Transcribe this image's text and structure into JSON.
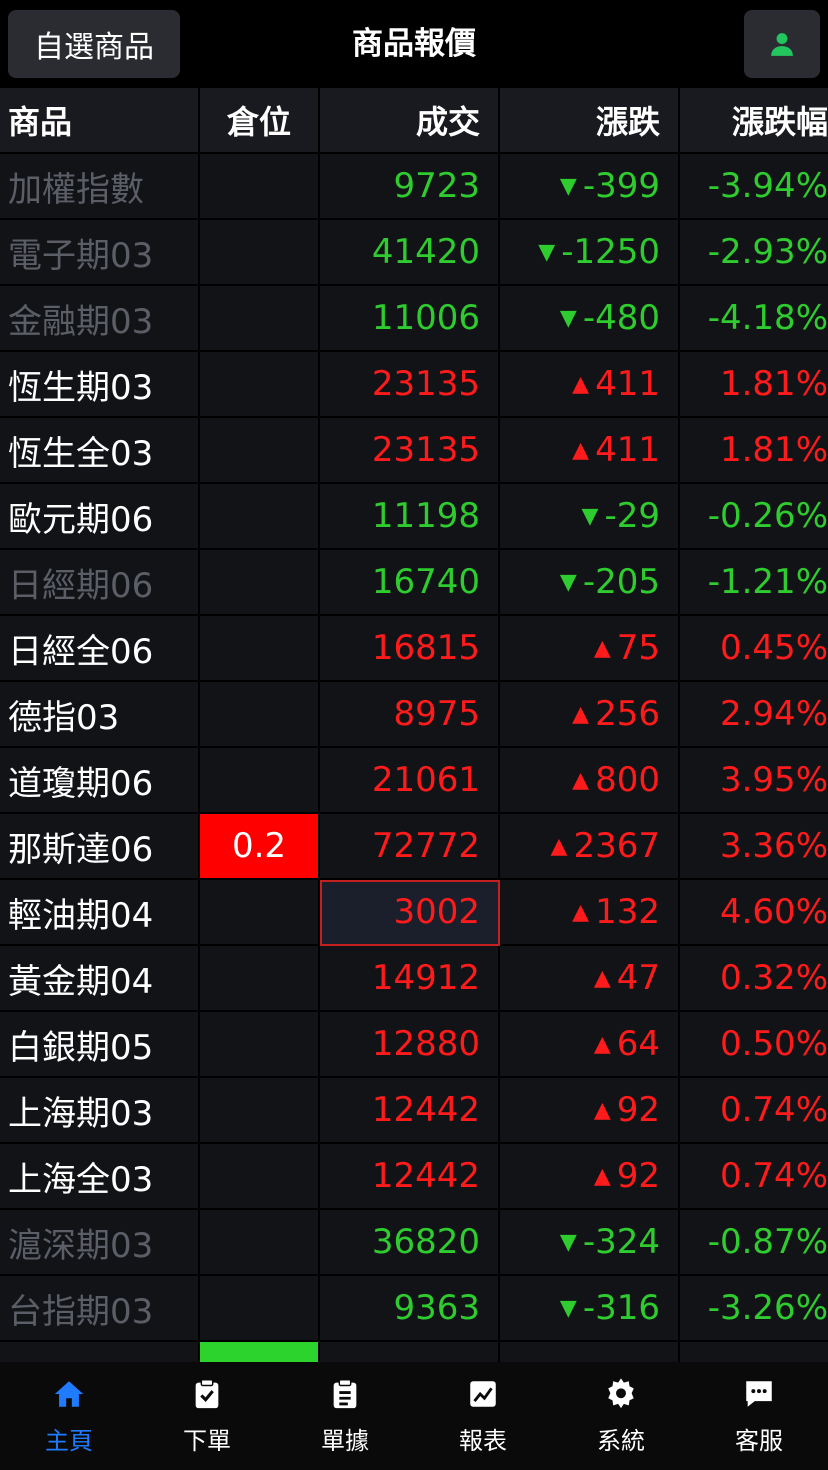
{
  "header": {
    "favorites_label": "自選商品",
    "title": "商品報價",
    "user_icon": "user-icon",
    "accent": "#22c55e"
  },
  "table": {
    "columns": [
      "商品",
      "倉位",
      "成交",
      "漲跌",
      "漲跌幅"
    ],
    "rows": [
      {
        "name": "加權指數",
        "position": "",
        "price": "9723",
        "change": "-399",
        "pct": "-3.94%",
        "dir": "down",
        "dim": true
      },
      {
        "name": "電子期03",
        "position": "",
        "price": "41420",
        "change": "-1250",
        "pct": "-2.93%",
        "dir": "down",
        "dim": true
      },
      {
        "name": "金融期03",
        "position": "",
        "price": "11006",
        "change": "-480",
        "pct": "-4.18%",
        "dir": "down",
        "dim": true
      },
      {
        "name": "恆生期03",
        "position": "",
        "price": "23135",
        "change": "411",
        "pct": "1.81%",
        "dir": "up",
        "dim": false
      },
      {
        "name": "恆生全03",
        "position": "",
        "price": "23135",
        "change": "411",
        "pct": "1.81%",
        "dir": "up",
        "dim": false
      },
      {
        "name": "歐元期06",
        "position": "",
        "price": "11198",
        "change": "-29",
        "pct": "-0.26%",
        "dir": "down",
        "dim": false
      },
      {
        "name": "日經期06",
        "position": "",
        "price": "16740",
        "change": "-205",
        "pct": "-1.21%",
        "dir": "down",
        "dim": true
      },
      {
        "name": "日經全06",
        "position": "",
        "price": "16815",
        "change": "75",
        "pct": "0.45%",
        "dir": "up",
        "dim": false
      },
      {
        "name": "德指03",
        "position": "",
        "price": "8975",
        "change": "256",
        "pct": "2.94%",
        "dir": "up",
        "dim": false
      },
      {
        "name": "道瓊期06",
        "position": "",
        "price": "21061",
        "change": "800",
        "pct": "3.95%",
        "dir": "up",
        "dim": false
      },
      {
        "name": "那斯達06",
        "position": "0.2",
        "price": "72772",
        "change": "2367",
        "pct": "3.36%",
        "dir": "up",
        "dim": false,
        "pos_color": "red"
      },
      {
        "name": "輕油期04",
        "position": "",
        "price": "3002",
        "change": "132",
        "pct": "4.60%",
        "dir": "up",
        "dim": false,
        "highlight": true
      },
      {
        "name": "黃金期04",
        "position": "",
        "price": "14912",
        "change": "47",
        "pct": "0.32%",
        "dir": "up",
        "dim": false
      },
      {
        "name": "白銀期05",
        "position": "",
        "price": "12880",
        "change": "64",
        "pct": "0.50%",
        "dir": "up",
        "dim": false
      },
      {
        "name": "上海期03",
        "position": "",
        "price": "12442",
        "change": "92",
        "pct": "0.74%",
        "dir": "up",
        "dim": false
      },
      {
        "name": "上海全03",
        "position": "",
        "price": "12442",
        "change": "92",
        "pct": "0.74%",
        "dir": "up",
        "dim": false
      },
      {
        "name": "滬深期03",
        "position": "",
        "price": "36820",
        "change": "-324",
        "pct": "-0.87%",
        "dir": "down",
        "dim": true
      },
      {
        "name": "台指期03",
        "position": "",
        "price": "9363",
        "change": "-316",
        "pct": "-3.26%",
        "dir": "down",
        "dim": true
      },
      {
        "name": "",
        "position": "",
        "price": "",
        "change": "",
        "pct": "",
        "dir": "none",
        "dim": false,
        "pos_color": "green"
      }
    ],
    "colors": {
      "up": "#ff1b1b",
      "down": "#2ecc2e",
      "dim": "#5b5e66"
    }
  },
  "nav": {
    "items": [
      {
        "label": "主頁",
        "icon": "home-icon",
        "active": true
      },
      {
        "label": "下單",
        "icon": "clipboard-check-icon",
        "active": false
      },
      {
        "label": "單據",
        "icon": "document-list-icon",
        "active": false
      },
      {
        "label": "報表",
        "icon": "chart-icon",
        "active": false
      },
      {
        "label": "系統",
        "icon": "gear-icon",
        "active": false
      },
      {
        "label": "客服",
        "icon": "chat-icon",
        "active": false
      }
    ],
    "active_color": "#1f7bff"
  }
}
